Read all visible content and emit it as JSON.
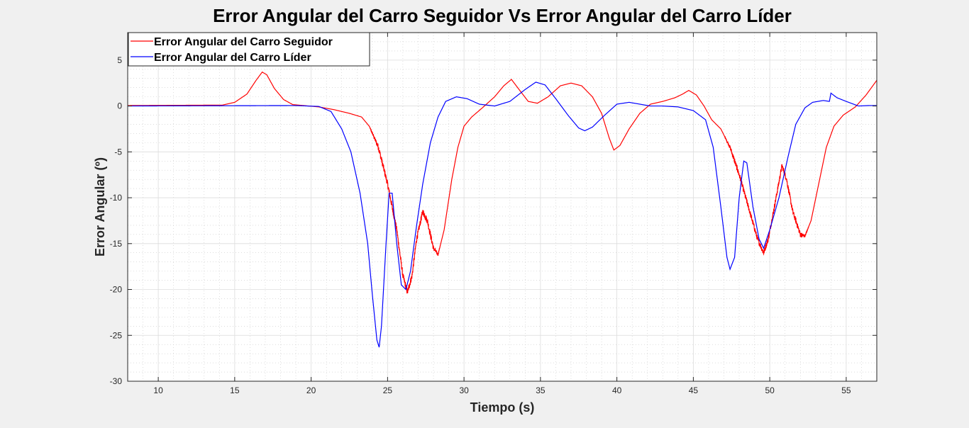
{
  "chart_data": {
    "type": "line",
    "title": "Error Angular del Carro Seguidor Vs Error Angular del Carro Líder",
    "xlabel": "Tiempo (s)",
    "ylabel": "Error Angular (º)",
    "xlim": [
      8,
      57
    ],
    "ylim": [
      -30,
      8
    ],
    "xticks": [
      10,
      15,
      20,
      25,
      30,
      35,
      40,
      45,
      50,
      55
    ],
    "yticks": [
      -30,
      -25,
      -20,
      -15,
      -10,
      -5,
      0,
      5
    ],
    "grid": true,
    "minor_grid": true,
    "legend_position": "top-left",
    "series": [
      {
        "name": "Error Angular del Carro Seguidor",
        "color": "#ff0000",
        "noise": [
          [
            23.8,
            28.5,
            0.7
          ],
          [
            47.0,
            52.6,
            0.6
          ]
        ],
        "points": [
          [
            8,
            0.05
          ],
          [
            14.2,
            0.1
          ],
          [
            15.0,
            0.4
          ],
          [
            15.8,
            1.3
          ],
          [
            16.4,
            2.8
          ],
          [
            16.8,
            3.7
          ],
          [
            17.1,
            3.4
          ],
          [
            17.6,
            1.9
          ],
          [
            18.2,
            0.7
          ],
          [
            18.8,
            0.15
          ],
          [
            19.5,
            0.05
          ],
          [
            20.5,
            -0.1
          ],
          [
            21.5,
            -0.4
          ],
          [
            22.5,
            -0.8
          ],
          [
            23.3,
            -1.2
          ],
          [
            23.8,
            -2.2
          ],
          [
            24.4,
            -4.5
          ],
          [
            25.0,
            -8.5
          ],
          [
            25.6,
            -13.5
          ],
          [
            26.0,
            -18.5
          ],
          [
            26.3,
            -20.3
          ],
          [
            26.6,
            -18.5
          ],
          [
            26.9,
            -14.5
          ],
          [
            27.3,
            -11.5
          ],
          [
            27.6,
            -12.5
          ],
          [
            28.0,
            -15.5
          ],
          [
            28.3,
            -16.2
          ],
          [
            28.7,
            -13.5
          ],
          [
            29.2,
            -8.0
          ],
          [
            29.6,
            -4.5
          ],
          [
            30.0,
            -2.2
          ],
          [
            30.5,
            -1.2
          ],
          [
            31.2,
            -0.2
          ],
          [
            32.0,
            1.0
          ],
          [
            32.6,
            2.2
          ],
          [
            33.1,
            2.9
          ],
          [
            33.6,
            1.8
          ],
          [
            34.2,
            0.5
          ],
          [
            34.8,
            0.3
          ],
          [
            35.5,
            1.0
          ],
          [
            36.3,
            2.2
          ],
          [
            37.0,
            2.5
          ],
          [
            37.7,
            2.2
          ],
          [
            38.4,
            1.0
          ],
          [
            39.0,
            -0.8
          ],
          [
            39.5,
            -3.5
          ],
          [
            39.8,
            -4.8
          ],
          [
            40.2,
            -4.3
          ],
          [
            40.8,
            -2.5
          ],
          [
            41.5,
            -0.8
          ],
          [
            42.2,
            0.2
          ],
          [
            43.0,
            0.5
          ],
          [
            43.8,
            0.9
          ],
          [
            44.3,
            1.3
          ],
          [
            44.7,
            1.7
          ],
          [
            45.2,
            1.2
          ],
          [
            45.7,
            0.0
          ],
          [
            46.2,
            -1.5
          ],
          [
            46.8,
            -2.5
          ],
          [
            47.4,
            -4.5
          ],
          [
            48.0,
            -7.5
          ],
          [
            48.6,
            -11.0
          ],
          [
            49.2,
            -14.5
          ],
          [
            49.6,
            -16.0
          ],
          [
            49.9,
            -14.5
          ],
          [
            50.3,
            -11.0
          ],
          [
            50.8,
            -6.5
          ],
          [
            51.1,
            -8.0
          ],
          [
            51.5,
            -11.5
          ],
          [
            52.0,
            -14.0
          ],
          [
            52.3,
            -14.2
          ],
          [
            52.7,
            -12.5
          ],
          [
            53.2,
            -8.5
          ],
          [
            53.7,
            -4.5
          ],
          [
            54.2,
            -2.2
          ],
          [
            54.8,
            -1.0
          ],
          [
            55.6,
            -0.1
          ],
          [
            56.3,
            1.2
          ],
          [
            57.0,
            2.8
          ]
        ]
      },
      {
        "name": "Error Angular del Carro Líder",
        "color": "#0000ff",
        "points": [
          [
            8,
            0.0
          ],
          [
            19.0,
            0.05
          ],
          [
            20.5,
            -0.05
          ],
          [
            21.3,
            -0.6
          ],
          [
            22.0,
            -2.5
          ],
          [
            22.6,
            -5.0
          ],
          [
            23.2,
            -9.5
          ],
          [
            23.7,
            -15.0
          ],
          [
            24.0,
            -20.5
          ],
          [
            24.3,
            -25.5
          ],
          [
            24.45,
            -26.3
          ],
          [
            24.6,
            -24.0
          ],
          [
            24.9,
            -15.0
          ],
          [
            25.1,
            -9.5
          ],
          [
            25.3,
            -9.5
          ],
          [
            25.6,
            -15.0
          ],
          [
            25.9,
            -19.5
          ],
          [
            26.2,
            -20.0
          ],
          [
            26.5,
            -18.0
          ],
          [
            26.9,
            -13.0
          ],
          [
            27.3,
            -8.5
          ],
          [
            27.8,
            -4.0
          ],
          [
            28.3,
            -1.2
          ],
          [
            28.8,
            0.5
          ],
          [
            29.5,
            1.0
          ],
          [
            30.2,
            0.8
          ],
          [
            31.0,
            0.2
          ],
          [
            32.0,
            0.0
          ],
          [
            33.0,
            0.5
          ],
          [
            34.0,
            1.8
          ],
          [
            34.7,
            2.6
          ],
          [
            35.3,
            2.3
          ],
          [
            36.0,
            0.8
          ],
          [
            36.8,
            -1.0
          ],
          [
            37.5,
            -2.4
          ],
          [
            37.9,
            -2.7
          ],
          [
            38.4,
            -2.3
          ],
          [
            39.2,
            -1.0
          ],
          [
            40.0,
            0.2
          ],
          [
            40.8,
            0.4
          ],
          [
            41.5,
            0.2
          ],
          [
            42.2,
            0.0
          ],
          [
            43.0,
            0.0
          ],
          [
            44.0,
            -0.1
          ],
          [
            45.0,
            -0.5
          ],
          [
            45.8,
            -1.5
          ],
          [
            46.3,
            -4.5
          ],
          [
            46.8,
            -11.0
          ],
          [
            47.2,
            -16.5
          ],
          [
            47.4,
            -17.8
          ],
          [
            47.7,
            -16.5
          ],
          [
            48.0,
            -10.0
          ],
          [
            48.3,
            -6.0
          ],
          [
            48.5,
            -6.2
          ],
          [
            48.9,
            -11.0
          ],
          [
            49.3,
            -14.5
          ],
          [
            49.6,
            -15.5
          ],
          [
            50.0,
            -13.5
          ],
          [
            50.6,
            -10.0
          ],
          [
            51.2,
            -5.5
          ],
          [
            51.7,
            -2.0
          ],
          [
            52.3,
            -0.2
          ],
          [
            52.8,
            0.4
          ],
          [
            53.5,
            0.6
          ],
          [
            53.9,
            0.5
          ],
          [
            54.0,
            1.4
          ],
          [
            54.4,
            0.9
          ],
          [
            55.0,
            0.5
          ],
          [
            55.8,
            0.0
          ],
          [
            56.5,
            0.05
          ],
          [
            57.0,
            0.05
          ]
        ]
      }
    ]
  }
}
